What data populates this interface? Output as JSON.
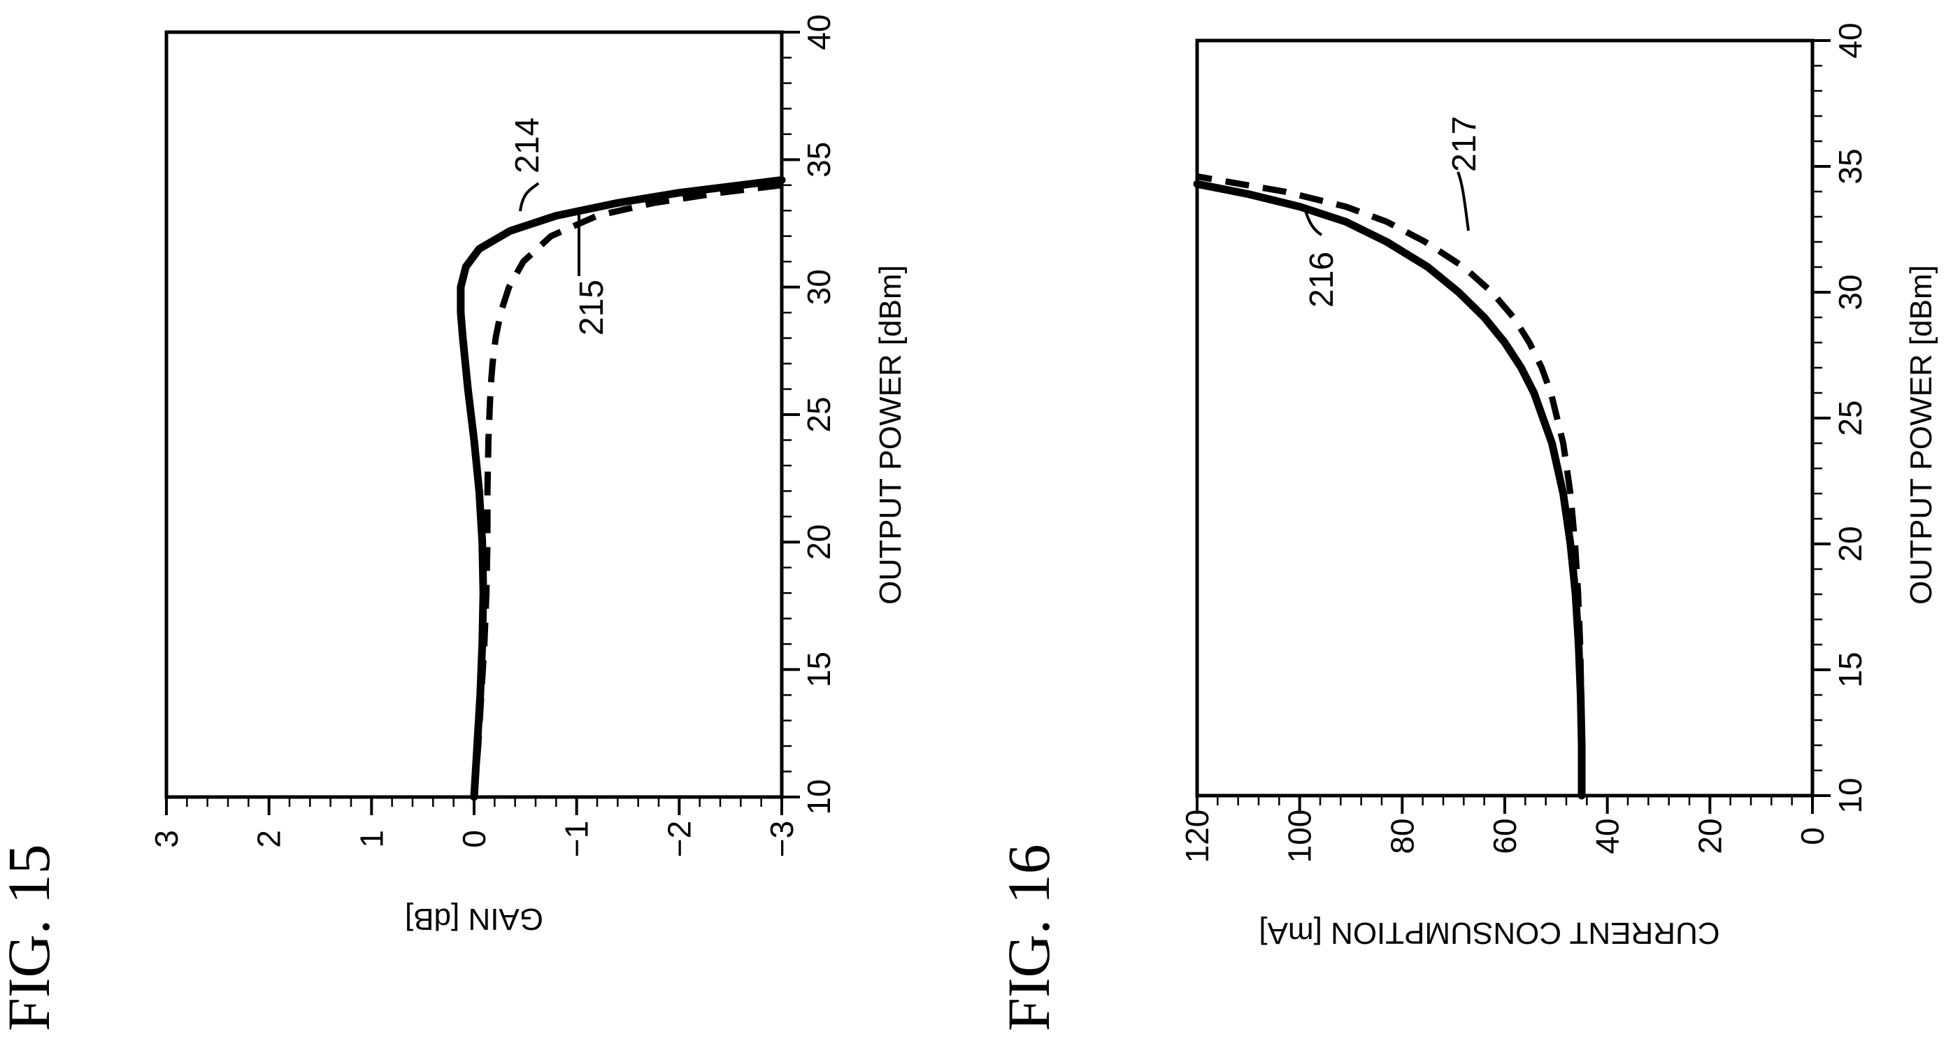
{
  "chart_data": [
    {
      "id": "fig15",
      "figure_label": "FIG. 15",
      "type": "line",
      "xlabel": "OUTPUT POWER [dBm]",
      "ylabel": "GAIN [dB]",
      "xlim": [
        10,
        40
      ],
      "ylim": [
        -3,
        3
      ],
      "x_ticks": [
        "10",
        "15",
        "20",
        "25",
        "30",
        "35",
        "40"
      ],
      "y_ticks": [
        "3",
        "2",
        "1",
        "0",
        "−1",
        "−2",
        "−3"
      ],
      "grid": false,
      "series": [
        {
          "name": "214",
          "style": "solid",
          "x": [
            10,
            12,
            14,
            16,
            18,
            20,
            22,
            24,
            26,
            28,
            29,
            30,
            30.8,
            31.5,
            32.2,
            32.8,
            33.3,
            33.7,
            34.0,
            34.2
          ],
          "y": [
            0.0,
            -0.03,
            -0.06,
            -0.08,
            -0.09,
            -0.08,
            -0.05,
            0.0,
            0.06,
            0.11,
            0.13,
            0.13,
            0.08,
            -0.05,
            -0.35,
            -0.8,
            -1.4,
            -2.0,
            -2.6,
            -3.0
          ]
        },
        {
          "name": "215",
          "style": "dashed",
          "x": [
            10,
            12,
            14,
            16,
            18,
            20,
            22,
            24,
            26,
            27,
            28,
            29,
            30,
            31,
            32,
            32.8,
            33.3,
            33.7,
            34.0
          ],
          "y": [
            0.0,
            -0.04,
            -0.07,
            -0.1,
            -0.12,
            -0.13,
            -0.13,
            -0.14,
            -0.16,
            -0.18,
            -0.21,
            -0.26,
            -0.34,
            -0.48,
            -0.75,
            -1.2,
            -1.75,
            -2.4,
            -3.0
          ]
        }
      ]
    },
    {
      "id": "fig16",
      "figure_label": "FIG. 16",
      "type": "line",
      "xlabel": "OUTPUT POWER [dBm]",
      "ylabel": "CURRENT CONSUMPTION [mA]",
      "xlim": [
        10,
        40
      ],
      "ylim": [
        0,
        120
      ],
      "x_ticks": [
        "10",
        "15",
        "20",
        "25",
        "30",
        "35",
        "40"
      ],
      "y_ticks": [
        "120",
        "100",
        "80",
        "60",
        "40",
        "20",
        "0"
      ],
      "grid": false,
      "series": [
        {
          "name": "216",
          "style": "solid",
          "x": [
            10,
            12,
            14,
            16,
            18,
            20,
            22,
            24,
            26,
            27,
            28,
            29,
            30,
            31,
            32,
            32.8,
            33.4,
            33.9,
            34.3
          ],
          "y": [
            45,
            45,
            45.2,
            45.6,
            46.2,
            47.2,
            48.6,
            50.8,
            54.3,
            56.8,
            60,
            64,
            69,
            75,
            83,
            91,
            100,
            110,
            120
          ]
        },
        {
          "name": "217",
          "style": "dashed",
          "x": [
            10,
            12,
            14,
            16,
            18,
            20,
            22,
            24,
            26,
            27,
            28,
            29,
            30,
            31,
            32,
            32.8,
            33.4,
            34.0,
            34.6
          ],
          "y": [
            45,
            45,
            45.1,
            45.3,
            45.7,
            46.3,
            47.2,
            48.6,
            51.0,
            52.8,
            55.2,
            58.3,
            62.5,
            68,
            75.5,
            83,
            91,
            103,
            120
          ]
        }
      ]
    }
  ]
}
